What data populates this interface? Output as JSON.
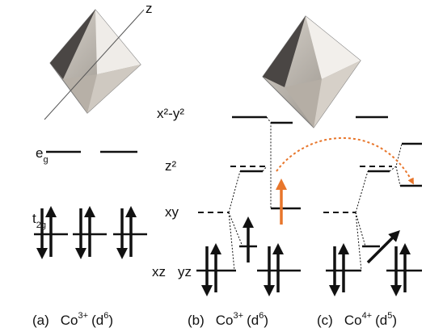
{
  "axis_label": "z",
  "levels": {
    "eg": {
      "base": "e",
      "sub": "g"
    },
    "t2g": {
      "base": "t",
      "sub": "2g"
    },
    "x2y2": "x²-y²",
    "z2": "z²",
    "xy": "xy",
    "xz": "xz",
    "yz": "yz"
  },
  "panels": [
    {
      "tag": "(a)",
      "ion": "Co",
      "charge": "3+",
      "config": "(d",
      "electrons": "6",
      "close": ")"
    },
    {
      "tag": "(b)",
      "ion": "Co",
      "charge": "3+",
      "config": "(d",
      "electrons": "6",
      "close": ")"
    },
    {
      "tag": "(c)",
      "ion": "Co",
      "charge": "4+",
      "config": "(d",
      "electrons": "5",
      "close": ")"
    }
  ]
}
